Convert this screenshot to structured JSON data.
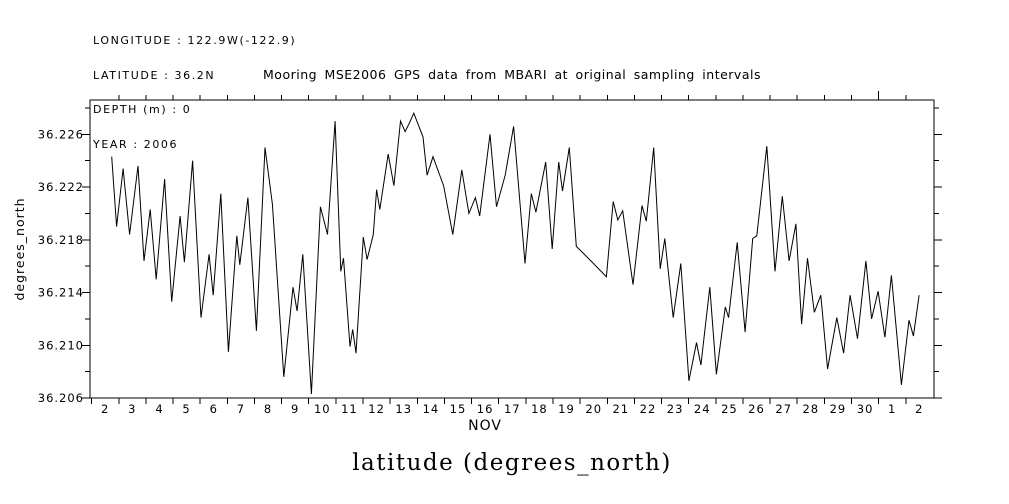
{
  "header_info": {
    "longitude": "LONGITUDE : 122.9W(-122.9)",
    "latitude": "LATITUDE : 36.2N",
    "depth": "DEPTH (m) : 0",
    "year": "YEAR : 2006"
  },
  "caption": "latitude (degrees_north)",
  "colors": {
    "foreground": "#000000",
    "background": "#ffffff"
  },
  "chart_data": {
    "type": "line",
    "title": "Mooring MSE2006 GPS data from MBARI at original sampling intervals",
    "xlabel": "NOV",
    "ylabel": "degrees_north",
    "xlim": [
      1.94,
      33.04
    ],
    "ylim": [
      36.206,
      36.2286
    ],
    "grid": false,
    "legend": "none",
    "y_ticks": [
      {
        "value": 36.206,
        "label": "36.206"
      },
      {
        "value": 36.21,
        "label": "36.210"
      },
      {
        "value": 36.214,
        "label": "36.214"
      },
      {
        "value": 36.218,
        "label": "36.218"
      },
      {
        "value": 36.222,
        "label": "36.222"
      },
      {
        "value": 36.226,
        "label": "36.226"
      }
    ],
    "y_minor_ticks": [
      36.208,
      36.212,
      36.216,
      36.22,
      36.224,
      36.228
    ],
    "x_ticks": [
      {
        "day": 2,
        "label": "2"
      },
      {
        "day": 3,
        "label": "3"
      },
      {
        "day": 4,
        "label": "4"
      },
      {
        "day": 5,
        "label": "5"
      },
      {
        "day": 6,
        "label": "6"
      },
      {
        "day": 7,
        "label": "7"
      },
      {
        "day": 8,
        "label": "8"
      },
      {
        "day": 9,
        "label": "9"
      },
      {
        "day": 10,
        "label": "10"
      },
      {
        "day": 11,
        "label": "11"
      },
      {
        "day": 12,
        "label": "12"
      },
      {
        "day": 13,
        "label": "13"
      },
      {
        "day": 14,
        "label": "14"
      },
      {
        "day": 15,
        "label": "15"
      },
      {
        "day": 16,
        "label": "16"
      },
      {
        "day": 17,
        "label": "17"
      },
      {
        "day": 18,
        "label": "18"
      },
      {
        "day": 19,
        "label": "19"
      },
      {
        "day": 20,
        "label": "20"
      },
      {
        "day": 21,
        "label": "21"
      },
      {
        "day": 22,
        "label": "22"
      },
      {
        "day": 23,
        "label": "23"
      },
      {
        "day": 24,
        "label": "24"
      },
      {
        "day": 25,
        "label": "25"
      },
      {
        "day": 26,
        "label": "26"
      },
      {
        "day": 27,
        "label": "27"
      },
      {
        "day": 28,
        "label": "28"
      },
      {
        "day": 29,
        "label": "29"
      },
      {
        "day": 30,
        "label": "30"
      },
      {
        "day": 31,
        "label": "1"
      },
      {
        "day": 32,
        "label": "2"
      }
    ],
    "month_boundary_day": 31,
    "series": [
      {
        "name": "latitude",
        "color": "#000000",
        "points": [
          [
            2.74,
            36.2243
          ],
          [
            2.92,
            36.219
          ],
          [
            3.16,
            36.2234
          ],
          [
            3.4,
            36.2184
          ],
          [
            3.71,
            36.2236
          ],
          [
            3.93,
            36.2164
          ],
          [
            4.16,
            36.2203
          ],
          [
            4.38,
            36.215
          ],
          [
            4.69,
            36.2226
          ],
          [
            4.95,
            36.2133
          ],
          [
            5.26,
            36.2198
          ],
          [
            5.42,
            36.2163
          ],
          [
            5.72,
            36.224
          ],
          [
            6.03,
            36.2121
          ],
          [
            6.33,
            36.2169
          ],
          [
            6.48,
            36.2138
          ],
          [
            6.76,
            36.2215
          ],
          [
            7.04,
            36.2095
          ],
          [
            7.35,
            36.2183
          ],
          [
            7.46,
            36.2161
          ],
          [
            7.76,
            36.2212
          ],
          [
            8.07,
            36.2111
          ],
          [
            8.39,
            36.225
          ],
          [
            8.66,
            36.2207
          ],
          [
            9.08,
            36.2076
          ],
          [
            9.42,
            36.2144
          ],
          [
            9.57,
            36.2126
          ],
          [
            9.78,
            36.2169
          ],
          [
            10.1,
            36.2063
          ],
          [
            10.43,
            36.2205
          ],
          [
            10.69,
            36.2184
          ],
          [
            10.97,
            36.227
          ],
          [
            11.18,
            36.2156
          ],
          [
            11.28,
            36.2166
          ],
          [
            11.52,
            36.2099
          ],
          [
            11.62,
            36.2112
          ],
          [
            11.74,
            36.2094
          ],
          [
            12.01,
            36.2182
          ],
          [
            12.15,
            36.2165
          ],
          [
            12.38,
            36.2184
          ],
          [
            12.5,
            36.2218
          ],
          [
            12.62,
            36.2203
          ],
          [
            12.93,
            36.2245
          ],
          [
            13.14,
            36.2221
          ],
          [
            13.38,
            36.227
          ],
          [
            13.55,
            36.2262
          ],
          [
            13.7,
            36.2268
          ],
          [
            13.87,
            36.2276
          ],
          [
            14.21,
            36.2258
          ],
          [
            14.36,
            36.2229
          ],
          [
            14.58,
            36.2243
          ],
          [
            14.97,
            36.2221
          ],
          [
            15.31,
            36.2184
          ],
          [
            15.64,
            36.2233
          ],
          [
            15.9,
            36.22
          ],
          [
            16.14,
            36.2212
          ],
          [
            16.3,
            36.2198
          ],
          [
            16.68,
            36.226
          ],
          [
            16.92,
            36.2205
          ],
          [
            17.24,
            36.2229
          ],
          [
            17.55,
            36.2266
          ],
          [
            17.97,
            36.2162
          ],
          [
            18.2,
            36.2215
          ],
          [
            18.37,
            36.2201
          ],
          [
            18.73,
            36.2239
          ],
          [
            18.97,
            36.2173
          ],
          [
            19.21,
            36.2239
          ],
          [
            19.35,
            36.2217
          ],
          [
            19.6,
            36.225
          ],
          [
            19.86,
            36.2175
          ],
          [
            20.06,
            36.2171
          ],
          [
            20.97,
            36.2152
          ],
          [
            21.22,
            36.2209
          ],
          [
            21.39,
            36.2195
          ],
          [
            21.57,
            36.2202
          ],
          [
            21.95,
            36.2146
          ],
          [
            22.28,
            36.2206
          ],
          [
            22.44,
            36.2194
          ],
          [
            22.71,
            36.225
          ],
          [
            22.95,
            36.2158
          ],
          [
            23.12,
            36.2181
          ],
          [
            23.43,
            36.2121
          ],
          [
            23.71,
            36.2162
          ],
          [
            24.01,
            36.2073
          ],
          [
            24.29,
            36.2102
          ],
          [
            24.45,
            36.2085
          ],
          [
            24.78,
            36.2144
          ],
          [
            25.02,
            36.2078
          ],
          [
            25.35,
            36.2129
          ],
          [
            25.47,
            36.2121
          ],
          [
            25.79,
            36.2178
          ],
          [
            26.08,
            36.211
          ],
          [
            26.36,
            36.2181
          ],
          [
            26.51,
            36.2183
          ],
          [
            26.88,
            36.2251
          ],
          [
            27.18,
            36.2156
          ],
          [
            27.45,
            36.2213
          ],
          [
            27.7,
            36.2164
          ],
          [
            27.95,
            36.2192
          ],
          [
            28.16,
            36.2116
          ],
          [
            28.38,
            36.2166
          ],
          [
            28.63,
            36.2125
          ],
          [
            28.87,
            36.2138
          ],
          [
            29.12,
            36.2082
          ],
          [
            29.46,
            36.2121
          ],
          [
            29.71,
            36.2094
          ],
          [
            29.95,
            36.2138
          ],
          [
            30.22,
            36.2105
          ],
          [
            30.53,
            36.2164
          ],
          [
            30.74,
            36.212
          ],
          [
            30.98,
            36.2141
          ],
          [
            31.23,
            36.2106
          ],
          [
            31.47,
            36.2153
          ],
          [
            31.84,
            36.207
          ],
          [
            32.12,
            36.2119
          ],
          [
            32.28,
            36.2107
          ],
          [
            32.49,
            36.2138
          ]
        ]
      }
    ]
  }
}
